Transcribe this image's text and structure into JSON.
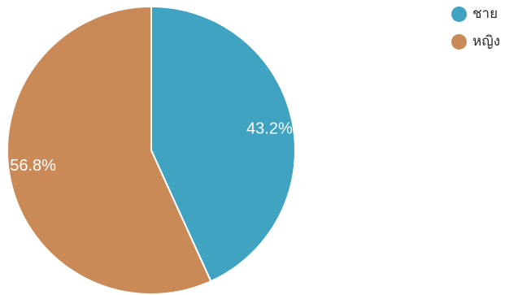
{
  "chart_data": {
    "type": "pie",
    "categories": [
      "ชาย",
      "หญิง"
    ],
    "values": [
      43.2,
      56.8
    ],
    "value_labels": [
      "43.2%",
      "56.8%"
    ],
    "colors": [
      "#3fa3c1",
      "#c98a57"
    ],
    "start_angle_deg": 270,
    "direction": "clockwise",
    "legend_position": "top-right"
  },
  "legend": {
    "items": [
      {
        "label": "ชาย",
        "color": "#3fa3c1"
      },
      {
        "label": "หญิง",
        "color": "#c98a57"
      }
    ]
  }
}
